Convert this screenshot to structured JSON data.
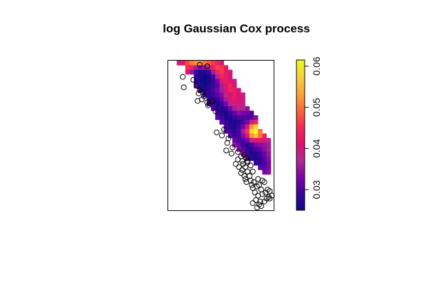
{
  "chart_data": {
    "type": "heatmap",
    "title": "log Gaussian Cox process",
    "xlabel": "",
    "ylabel": "",
    "legend": {
      "position": "right",
      "range": [
        0.025,
        0.0615
      ],
      "ticks": [
        0.03,
        0.04,
        0.05,
        0.06
      ],
      "tick_labels": [
        "0.03",
        "0.04",
        "0.05",
        "0.06"
      ],
      "colormap": [
        "#0d0887",
        "#3a049a",
        "#7e03a8",
        "#b12a90",
        "#e0116f",
        "#f52a53",
        "#fd6a35",
        "#fca636",
        "#f7d13d",
        "#f0f921"
      ]
    },
    "axes": {
      "frame": true,
      "ticks_shown": false
    },
    "field_mask": [
      "001111111111100000000000",
      "000011111111110000000000",
      "000011111111111000000000",
      "000000111111111000000000",
      "000000111111111100000000",
      "000000111111111100000000",
      "000000011111111110000000",
      "000000001111111111000000",
      "000000000111111111000000",
      "000000000111111111000000",
      "000000000011111111100000",
      "000000000001111111110000",
      "000000000001111111111000",
      "000000000000111111111000",
      "000000000000011111111000",
      "000000000000011111111100",
      "000000000000001111111110",
      "000000000000000111111111",
      "000000000000000111111111",
      "000000000000000011111111",
      "000000000000000001111111",
      "000000000000000000111111",
      "000000000000000000001111",
      "000000000000000000000111",
      "000000000000000000000011"
    ],
    "field_values": [
      [
        0,
        0,
        0.04,
        0.042,
        0.047,
        0.05,
        0.052,
        0.051,
        0.05,
        0.048,
        0.046,
        0.044,
        0.041,
        0,
        0,
        0,
        0,
        0,
        0,
        0,
        0,
        0,
        0,
        0
      ],
      [
        0,
        0,
        0,
        0,
        0.045,
        0.044,
        0.036,
        0.034,
        0.035,
        0.039,
        0.044,
        0.047,
        0.046,
        0.042,
        0,
        0,
        0,
        0,
        0,
        0,
        0,
        0,
        0,
        0
      ],
      [
        0,
        0,
        0,
        0,
        0.042,
        0.035,
        0.029,
        0.027,
        0.027,
        0.029,
        0.036,
        0.044,
        0.046,
        0.043,
        0.04,
        0,
        0,
        0,
        0,
        0,
        0,
        0,
        0,
        0
      ],
      [
        0,
        0,
        0,
        0,
        0,
        0,
        0.029,
        0.026,
        0.025,
        0.026,
        0.03,
        0.037,
        0.044,
        0.043,
        0.04,
        0,
        0,
        0,
        0,
        0,
        0,
        0,
        0,
        0
      ],
      [
        0,
        0,
        0,
        0,
        0,
        0,
        0.028,
        0.025,
        0.025,
        0.026,
        0.029,
        0.033,
        0.04,
        0.043,
        0.042,
        0.039,
        0,
        0,
        0,
        0,
        0,
        0,
        0,
        0
      ],
      [
        0,
        0,
        0,
        0,
        0,
        0,
        0.03,
        0.027,
        0.026,
        0.027,
        0.029,
        0.031,
        0.036,
        0.041,
        0.044,
        0.04,
        0,
        0,
        0,
        0,
        0,
        0,
        0,
        0
      ],
      [
        0,
        0,
        0,
        0,
        0,
        0,
        0,
        0.029,
        0.028,
        0.028,
        0.03,
        0.033,
        0.036,
        0.04,
        0.044,
        0.043,
        0.04,
        0,
        0,
        0,
        0,
        0,
        0,
        0
      ],
      [
        0,
        0,
        0,
        0,
        0,
        0,
        0,
        0,
        0.029,
        0.028,
        0.029,
        0.031,
        0.034,
        0.038,
        0.041,
        0.043,
        0.041,
        0.039,
        0,
        0,
        0,
        0,
        0,
        0
      ],
      [
        0,
        0,
        0,
        0,
        0,
        0,
        0,
        0,
        0,
        0.029,
        0.028,
        0.029,
        0.032,
        0.036,
        0.04,
        0.042,
        0.041,
        0.039,
        0,
        0,
        0,
        0,
        0,
        0
      ],
      [
        0,
        0,
        0,
        0,
        0,
        0,
        0,
        0,
        0,
        0.031,
        0.028,
        0.027,
        0.029,
        0.033,
        0.037,
        0.04,
        0.04,
        0.038,
        0,
        0,
        0,
        0,
        0,
        0
      ],
      [
        0,
        0,
        0,
        0,
        0,
        0,
        0,
        0,
        0,
        0,
        0.031,
        0.028,
        0.027,
        0.029,
        0.033,
        0.036,
        0.038,
        0.037,
        0.035,
        0,
        0,
        0,
        0,
        0
      ],
      [
        0,
        0,
        0,
        0,
        0,
        0,
        0,
        0,
        0,
        0,
        0,
        0.03,
        0.027,
        0.026,
        0.029,
        0.032,
        0.034,
        0.033,
        0.032,
        0.03,
        0,
        0,
        0,
        0
      ],
      [
        0,
        0,
        0,
        0,
        0,
        0,
        0,
        0,
        0,
        0,
        0,
        0.031,
        0.029,
        0.027,
        0.027,
        0.029,
        0.03,
        0.03,
        0.03,
        0.031,
        0.034,
        0,
        0,
        0
      ],
      [
        0,
        0,
        0,
        0,
        0,
        0,
        0,
        0,
        0,
        0,
        0,
        0,
        0.031,
        0.029,
        0.027,
        0.027,
        0.028,
        0.03,
        0.033,
        0.038,
        0.045,
        0,
        0,
        0
      ],
      [
        0,
        0,
        0,
        0,
        0,
        0,
        0,
        0,
        0,
        0,
        0,
        0,
        0,
        0.03,
        0.028,
        0.027,
        0.029,
        0.033,
        0.04,
        0.052,
        0.058,
        0,
        0,
        0
      ],
      [
        0,
        0,
        0,
        0,
        0,
        0,
        0,
        0,
        0,
        0,
        0,
        0,
        0,
        0.031,
        0.029,
        0.028,
        0.03,
        0.036,
        0.046,
        0.058,
        0.061,
        0.05,
        0,
        0
      ],
      [
        0,
        0,
        0,
        0,
        0,
        0,
        0,
        0,
        0,
        0,
        0,
        0,
        0,
        0,
        0.031,
        0.029,
        0.03,
        0.034,
        0.042,
        0.052,
        0.056,
        0.05,
        0.044,
        0
      ],
      [
        0,
        0,
        0,
        0,
        0,
        0,
        0,
        0,
        0,
        0,
        0,
        0,
        0,
        0,
        0,
        0.032,
        0.03,
        0.03,
        0.033,
        0.038,
        0.042,
        0.042,
        0.04,
        0.038
      ],
      [
        0,
        0,
        0,
        0,
        0,
        0,
        0,
        0,
        0,
        0,
        0,
        0,
        0,
        0,
        0,
        0.035,
        0.032,
        0.029,
        0.028,
        0.03,
        0.033,
        0.034,
        0.035,
        0.036
      ],
      [
        0,
        0,
        0,
        0,
        0,
        0,
        0,
        0,
        0,
        0,
        0,
        0,
        0,
        0,
        0,
        0,
        0.034,
        0.031,
        0.028,
        0.028,
        0.03,
        0.032,
        0.034,
        0.036
      ],
      [
        0,
        0,
        0,
        0,
        0,
        0,
        0,
        0,
        0,
        0,
        0,
        0,
        0,
        0,
        0,
        0,
        0,
        0.034,
        0.03,
        0.027,
        0.027,
        0.029,
        0.032,
        0.035
      ],
      [
        0,
        0,
        0,
        0,
        0,
        0,
        0,
        0,
        0,
        0,
        0,
        0,
        0,
        0,
        0,
        0,
        0,
        0,
        0.031,
        0.028,
        0.027,
        0.028,
        0.031,
        0.034
      ],
      [
        0,
        0,
        0,
        0,
        0,
        0,
        0,
        0,
        0,
        0,
        0,
        0,
        0,
        0,
        0,
        0,
        0,
        0,
        0,
        0,
        0.029,
        0.028,
        0.03,
        0.033
      ],
      [
        0,
        0,
        0,
        0,
        0,
        0,
        0,
        0,
        0,
        0,
        0,
        0,
        0,
        0,
        0,
        0,
        0,
        0,
        0,
        0,
        0,
        0.031,
        0.031,
        0.033
      ],
      [
        0,
        0,
        0,
        0,
        0,
        0,
        0,
        0,
        0,
        0,
        0,
        0,
        0,
        0,
        0,
        0,
        0,
        0,
        0,
        0,
        0,
        0,
        0.033,
        0.034
      ]
    ],
    "points": [
      [
        0.3,
        0.97
      ],
      [
        0.37,
        0.96
      ],
      [
        0.14,
        0.89
      ],
      [
        0.24,
        0.87
      ],
      [
        0.15,
        0.82
      ],
      [
        0.27,
        0.83
      ],
      [
        0.3,
        0.8
      ],
      [
        0.33,
        0.79
      ],
      [
        0.29,
        0.78
      ],
      [
        0.34,
        0.76
      ],
      [
        0.32,
        0.74
      ],
      [
        0.28,
        0.73
      ],
      [
        0.37,
        0.72
      ],
      [
        0.42,
        0.73
      ],
      [
        0.38,
        0.7
      ],
      [
        0.45,
        0.66
      ],
      [
        0.53,
        0.54
      ],
      [
        0.46,
        0.52
      ],
      [
        0.51,
        0.5
      ],
      [
        0.57,
        0.48
      ],
      [
        0.56,
        0.45
      ],
      [
        0.61,
        0.42
      ],
      [
        0.6,
        0.38
      ],
      [
        0.66,
        0.39
      ],
      [
        0.69,
        0.36
      ],
      [
        0.72,
        0.37
      ],
      [
        0.66,
        0.34
      ],
      [
        0.74,
        0.35
      ],
      [
        0.7,
        0.33
      ],
      [
        0.75,
        0.32
      ],
      [
        0.64,
        0.31
      ],
      [
        0.67,
        0.29
      ],
      [
        0.73,
        0.29
      ],
      [
        0.78,
        0.3
      ],
      [
        0.7,
        0.27
      ],
      [
        0.75,
        0.26
      ],
      [
        0.69,
        0.25
      ],
      [
        0.72,
        0.23
      ],
      [
        0.77,
        0.23
      ],
      [
        0.8,
        0.26
      ],
      [
        0.73,
        0.21
      ],
      [
        0.78,
        0.2
      ],
      [
        0.74,
        0.19
      ],
      [
        0.81,
        0.19
      ],
      [
        0.85,
        0.21
      ],
      [
        0.79,
        0.17
      ],
      [
        0.84,
        0.16
      ],
      [
        0.86,
        0.17
      ],
      [
        0.89,
        0.2
      ],
      [
        0.91,
        0.19
      ],
      [
        0.8,
        0.15
      ],
      [
        0.88,
        0.14
      ],
      [
        0.94,
        0.14
      ],
      [
        0.82,
        0.12
      ],
      [
        0.92,
        0.12
      ],
      [
        0.96,
        0.13
      ],
      [
        0.89,
        0.11
      ],
      [
        0.85,
        0.1
      ],
      [
        0.93,
        0.08
      ],
      [
        0.98,
        0.1
      ],
      [
        0.95,
        0.09
      ],
      [
        0.83,
        0.07
      ],
      [
        0.87,
        0.06
      ],
      [
        0.91,
        0.06
      ],
      [
        0.8,
        0.05
      ],
      [
        0.86,
        0.04
      ],
      [
        0.84,
        0.02
      ],
      [
        0.88,
        0.03
      ],
      [
        0.96,
        0.08
      ],
      [
        0.75,
        0.33
      ],
      [
        0.71,
        0.31
      ],
      [
        0.55,
        0.4
      ]
    ]
  }
}
